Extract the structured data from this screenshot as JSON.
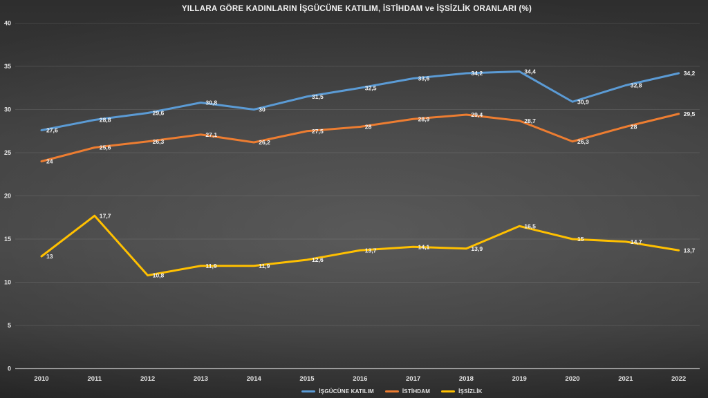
{
  "chart_data": {
    "type": "line",
    "title": "YILLARA GÖRE KADINLARIN İŞGÜCÜNE KATILIM, İSTİHDAM ve İŞSİZLİK ORANLARI (%)",
    "categories": [
      "2010",
      "2011",
      "2012",
      "2013",
      "2014",
      "2015",
      "2016",
      "2017",
      "2018",
      "2019",
      "2020",
      "2021",
      "2022"
    ],
    "y_axis": {
      "min": 0,
      "max": 40,
      "step": 5,
      "tick_labels": [
        "0",
        "5",
        "10",
        "15",
        "20",
        "25",
        "30",
        "35",
        "40"
      ]
    },
    "grid": true,
    "legend_position": "bottom",
    "series": [
      {
        "name": "İŞGÜCÜNE KATILIM",
        "color": "#5B9BD5",
        "values": [
          27.6,
          28.8,
          29.6,
          30.8,
          30,
          31.5,
          32.5,
          33.6,
          34.2,
          34.4,
          30.9,
          32.8,
          34.2
        ],
        "labels": [
          "27,6",
          "28,8",
          "29,6",
          "30,8",
          "30",
          "31,5",
          "32,5",
          "33,6",
          "34,2",
          "34,4",
          "30,9",
          "32,8",
          "34,2"
        ]
      },
      {
        "name": "İSTİHDAM",
        "color": "#ED7D31",
        "values": [
          24,
          25.6,
          26.3,
          27.1,
          26.2,
          27.5,
          28,
          28.9,
          29.4,
          28.7,
          26.3,
          28,
          29.5
        ],
        "labels": [
          "24",
          "25,6",
          "26,3",
          "27,1",
          "26,2",
          "27,5",
          "28",
          "28,9",
          "29,4",
          "28,7",
          "26,3",
          "28",
          "29,5"
        ]
      },
      {
        "name": "İŞSİZLİK",
        "color": "#FFC000",
        "values": [
          13,
          17.7,
          10.8,
          11.9,
          11.9,
          12.6,
          13.7,
          14.1,
          13.9,
          16.5,
          15,
          14.7,
          13.7
        ],
        "labels": [
          "13",
          "17,7",
          "10,8",
          "11,9",
          "11,9",
          "12,6",
          "13,7",
          "14,1",
          "13,9",
          "16,5",
          "15",
          "14,7",
          "13,7"
        ]
      }
    ]
  },
  "colors": {
    "text": "#f2f2f2",
    "grid": "#5a5a5a",
    "axis": "#bfbfbf",
    "background_center": "#4a4a4a",
    "background_edge": "#262626"
  }
}
